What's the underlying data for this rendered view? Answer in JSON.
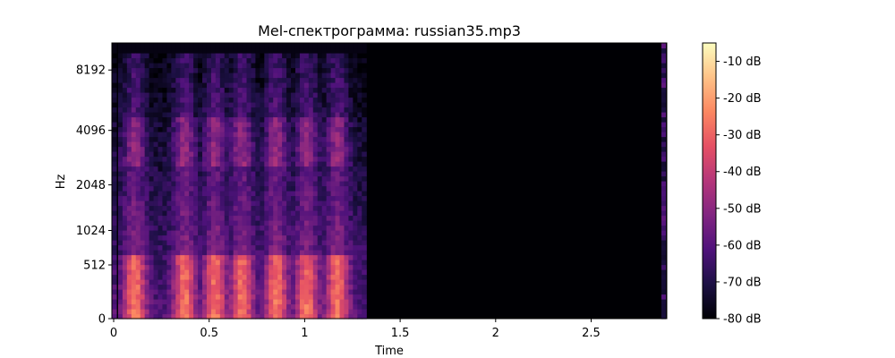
{
  "chart_data": {
    "type": "heatmap",
    "title": "Mel-спектрограмма: russian35.mp3",
    "xlabel": "Time",
    "ylabel": "Hz",
    "x_ticks": [
      {
        "value": 0,
        "label": "0"
      },
      {
        "value": 0.5,
        "label": "0.5"
      },
      {
        "value": 1,
        "label": "1"
      },
      {
        "value": 1.5,
        "label": "1.5"
      },
      {
        "value": 2,
        "label": "2"
      },
      {
        "value": 2.5,
        "label": "2.5"
      }
    ],
    "y_ticks": [
      {
        "value": 0,
        "label": "0"
      },
      {
        "value": 512,
        "label": "512"
      },
      {
        "value": 1024,
        "label": "1024"
      },
      {
        "value": 2048,
        "label": "2048"
      },
      {
        "value": 4096,
        "label": "4096"
      },
      {
        "value": 8192,
        "label": "8192"
      }
    ],
    "xlim": [
      0,
      2.88
    ],
    "ylim_hz": [
      0,
      11025
    ],
    "y_scale": "mel",
    "colormap": "magma",
    "colorbar": {
      "range": [
        -80,
        -5
      ],
      "ticks": [
        {
          "value": -10,
          "label": "-10 dB"
        },
        {
          "value": -20,
          "label": "-20 dB"
        },
        {
          "value": -30,
          "label": "-30 dB"
        },
        {
          "value": -40,
          "label": "-40 dB"
        },
        {
          "value": -50,
          "label": "-50 dB"
        },
        {
          "value": -60,
          "label": "-60 dB"
        },
        {
          "value": -70,
          "label": "-70 dB"
        },
        {
          "value": -80,
          "label": "-80 dB"
        }
      ]
    },
    "signal_end_time": 1.32,
    "silence_level_db": -80
  }
}
